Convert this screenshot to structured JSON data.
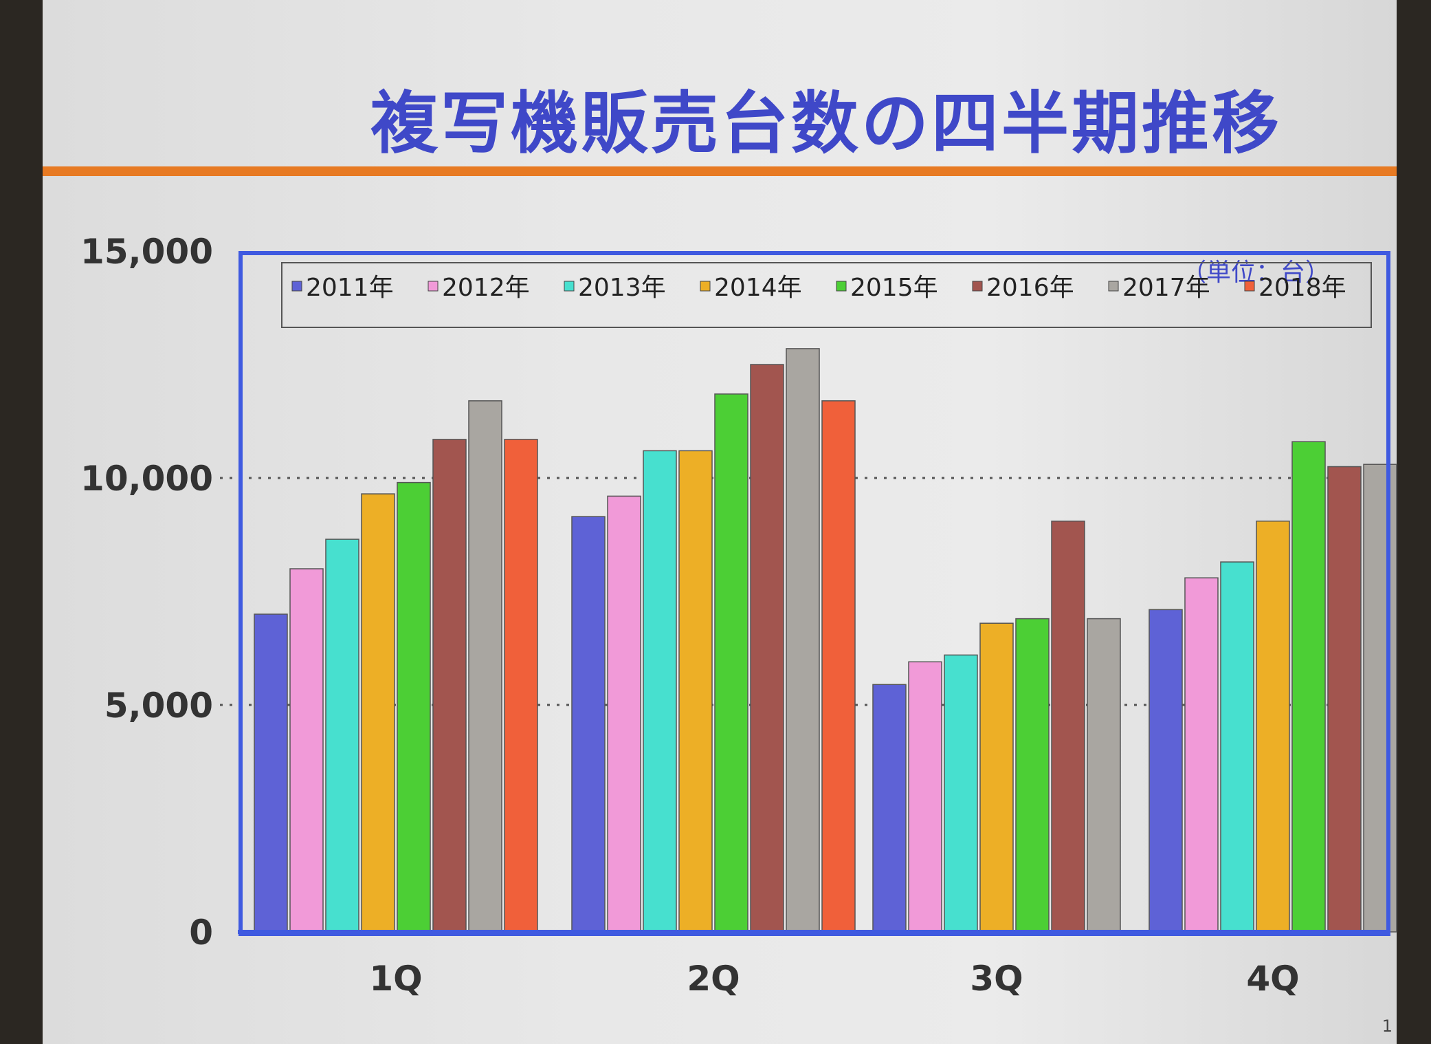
{
  "slide": {
    "title": "複写機販売台数の四半期推移",
    "unit_note": "（単位：台）",
    "page_number": "1"
  },
  "colors": {
    "title": "#3f48c8",
    "rule": "#e77a23",
    "frame": "#3f5ae0"
  },
  "chart_data": {
    "type": "bar",
    "title": "複写機販売台数の四半期推移",
    "xlabel": "",
    "ylabel": "",
    "unit": "（単位：台）",
    "ylim": [
      0,
      15000
    ],
    "yticks": [
      0,
      5000,
      10000,
      15000
    ],
    "ytick_labels": [
      "0",
      "5,000",
      "10,000",
      "15,000"
    ],
    "grid": "dotted horizontal",
    "legend_position": "top",
    "categories": [
      "1Q",
      "2Q",
      "3Q",
      "4Q"
    ],
    "series": [
      {
        "name": "2011年",
        "color": "#5e62d6",
        "values": [
          7000,
          9150,
          5450,
          7100
        ]
      },
      {
        "name": "2012年",
        "color": "#f19ad8",
        "values": [
          8000,
          9600,
          5950,
          7800
        ]
      },
      {
        "name": "2013年",
        "color": "#47e0cf",
        "values": [
          8650,
          10600,
          6100,
          8150
        ]
      },
      {
        "name": "2014年",
        "color": "#edaf26",
        "values": [
          9650,
          10600,
          6800,
          9050
        ]
      },
      {
        "name": "2015年",
        "color": "#4ccf35",
        "values": [
          9900,
          11850,
          6900,
          10800
        ]
      },
      {
        "name": "2016年",
        "color": "#a2554f",
        "values": [
          10850,
          12500,
          9050,
          10250
        ]
      },
      {
        "name": "2017年",
        "color": "#a9a6a1",
        "values": [
          11700,
          12850,
          6900,
          10300
        ]
      },
      {
        "name": "2018年",
        "color": "#f0603a",
        "values": [
          10850,
          11700,
          null,
          null
        ]
      }
    ]
  }
}
